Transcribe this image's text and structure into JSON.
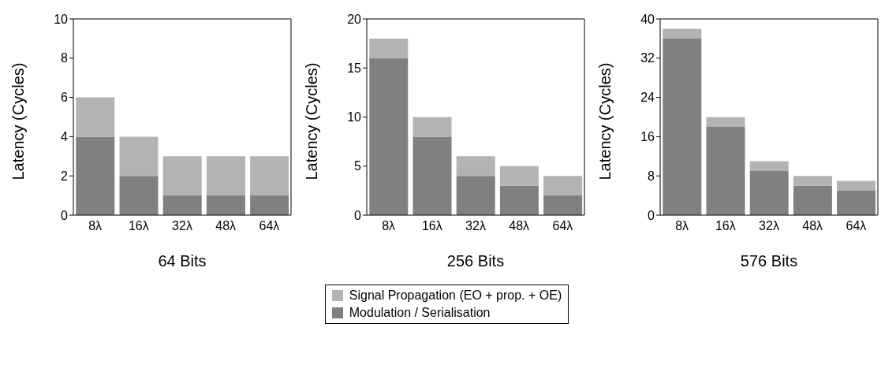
{
  "chart_data": [
    {
      "type": "bar",
      "stacked": true,
      "xlabel": "64 Bits",
      "ylabel": "Latency (Cycles)",
      "categories": [
        "8λ",
        "16λ",
        "32λ",
        "48λ",
        "64λ"
      ],
      "ylim": [
        0,
        10
      ],
      "yticks": [
        0,
        2,
        4,
        6,
        8,
        10
      ],
      "legend": "bottom",
      "series": [
        {
          "name": "Modulation / Serialisation",
          "color": "#808080",
          "values": [
            4,
            2,
            1,
            1,
            1
          ]
        },
        {
          "name": "Signal Propagation (EO + prop. + OE)",
          "color": "#b3b3b3",
          "values": [
            2,
            2,
            2,
            2,
            2
          ]
        }
      ]
    },
    {
      "type": "bar",
      "stacked": true,
      "xlabel": "256 Bits",
      "ylabel": "Latency (Cycles)",
      "categories": [
        "8λ",
        "16λ",
        "32λ",
        "48λ",
        "64λ"
      ],
      "ylim": [
        0,
        20
      ],
      "yticks": [
        0,
        5,
        10,
        15,
        20
      ],
      "series": [
        {
          "color": "#808080",
          "values": [
            16,
            8,
            4,
            3,
            2
          ]
        },
        {
          "color": "#b3b3b3",
          "values": [
            2,
            2,
            2,
            2,
            2
          ]
        }
      ]
    },
    {
      "type": "bar",
      "stacked": true,
      "xlabel": "576 Bits",
      "ylabel": "Latency (Cycles)",
      "categories": [
        "8λ",
        "16λ",
        "32λ",
        "48λ",
        "64λ"
      ],
      "ylim": [
        0,
        40
      ],
      "yticks": [
        0,
        8,
        16,
        24,
        32,
        40
      ],
      "series": [
        {
          "color": "#808080",
          "values": [
            36,
            18,
            9,
            6,
            5
          ]
        },
        {
          "color": "#b3b3b3",
          "values": [
            2,
            2,
            2,
            2,
            2
          ]
        }
      ]
    }
  ]
}
